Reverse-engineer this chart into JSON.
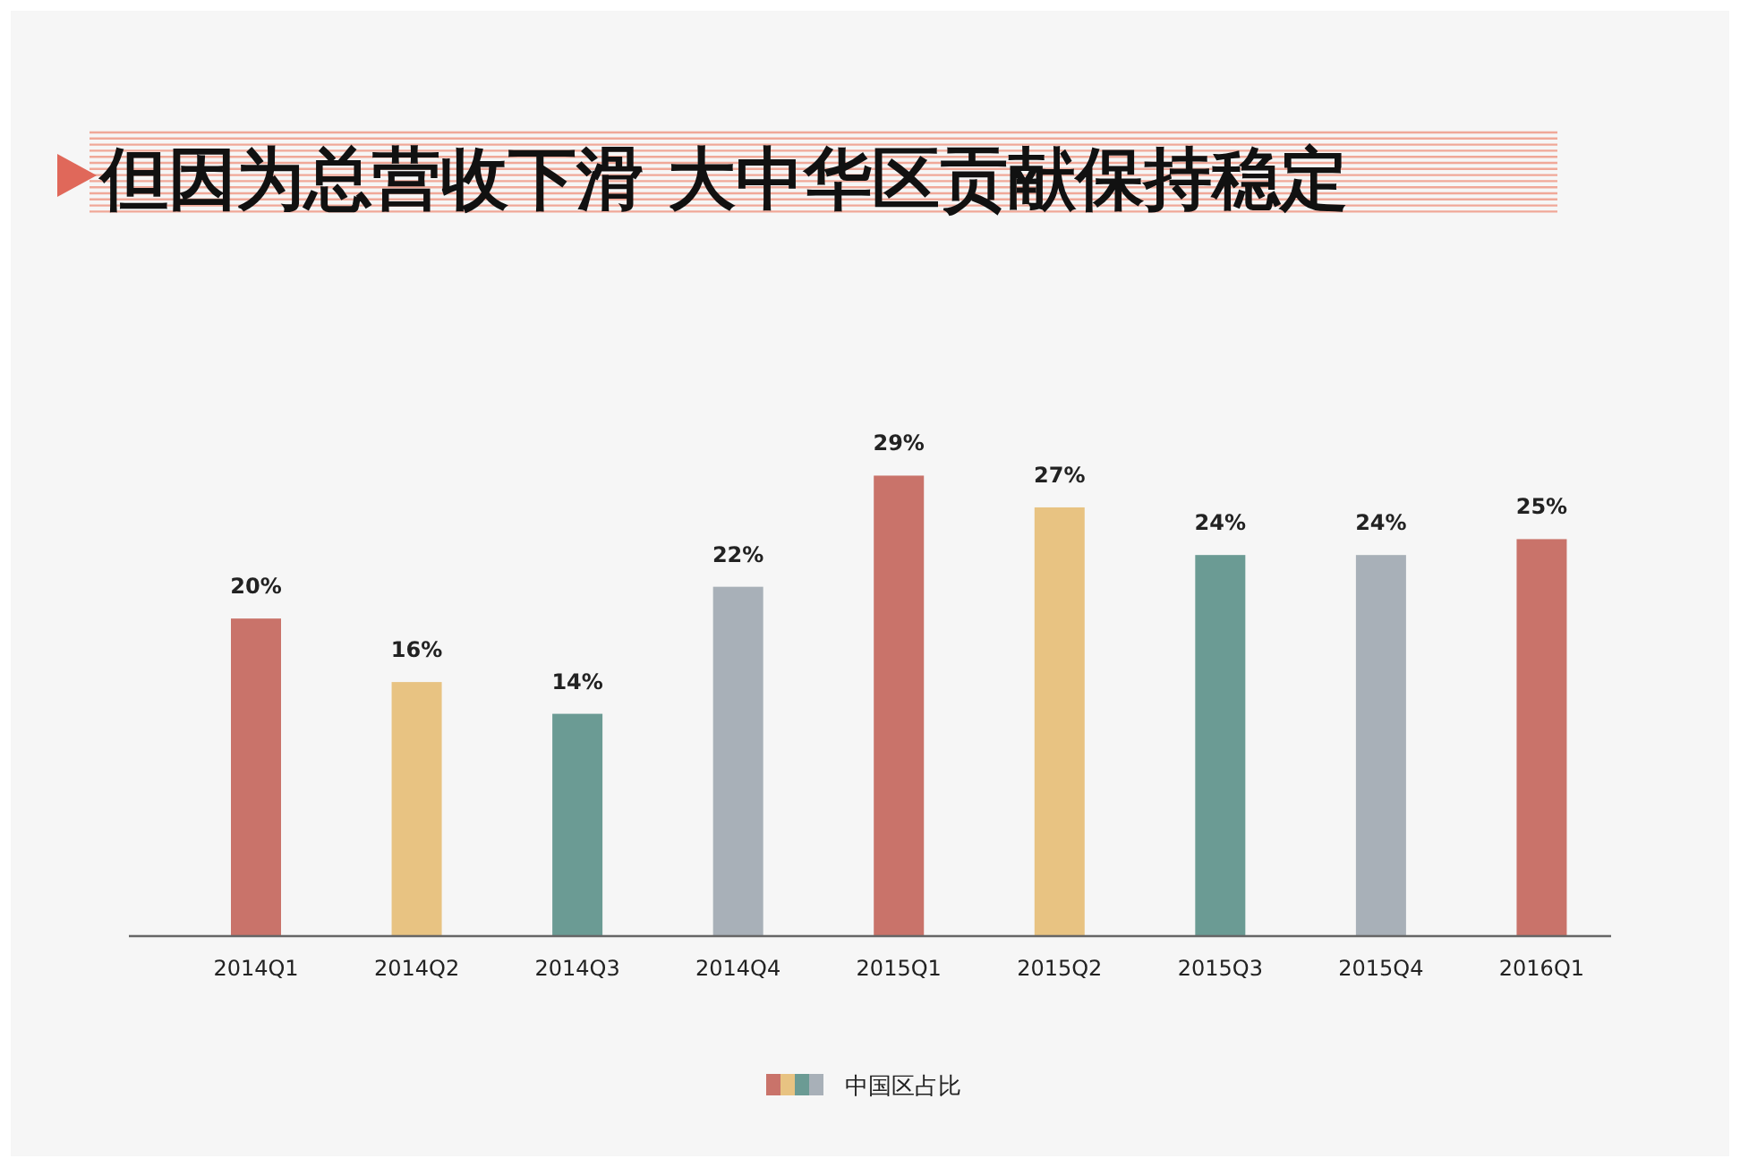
{
  "chart_data": {
    "type": "bar",
    "title": "但因为总营收下滑 大中华区贡献保持稳定",
    "categories": [
      "2014Q1",
      "2014Q2",
      "2014Q3",
      "2014Q4",
      "2015Q1",
      "2015Q2",
      "2015Q3",
      "2015Q4",
      "2016Q1"
    ],
    "series": [
      {
        "name": "中国区占比",
        "values": [
          20,
          16,
          14,
          22,
          29,
          27,
          24,
          24,
          25
        ],
        "colors": [
          "#c9736a",
          "#e8c382",
          "#6b9b94",
          "#a8b0b8",
          "#c9736a",
          "#e8c382",
          "#6b9b94",
          "#a8b0b8",
          "#c9736a"
        ],
        "value_labels": [
          "20%",
          "16%",
          "14%",
          "22%",
          "29%",
          "27%",
          "24%",
          "24%",
          "25%"
        ]
      }
    ],
    "legend": "bottom"
  }
}
